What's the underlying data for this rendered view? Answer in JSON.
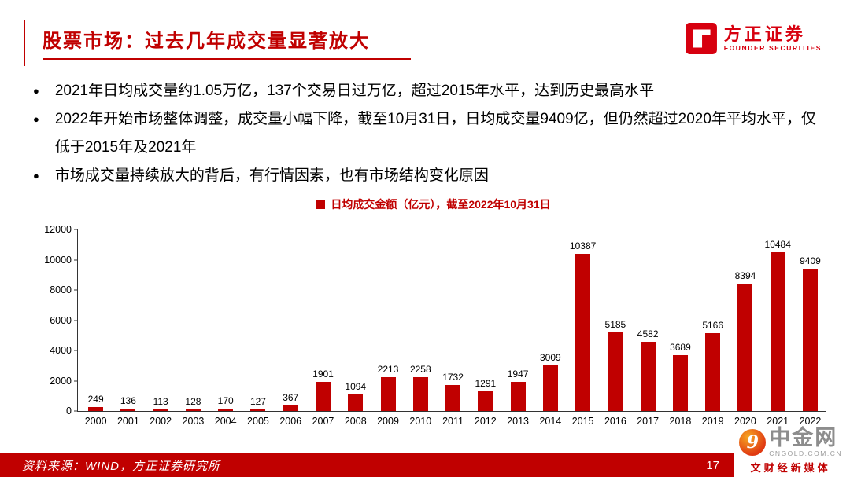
{
  "header": {
    "title": "股票市场：过去几年成交量显著放大",
    "logo": {
      "name": "方正证券",
      "subtitle": "FOUNDER SECURITIES"
    }
  },
  "bullets": [
    "2021年日均成交量约1.05万亿，137个交易日过万亿，超过2015年水平，达到历史最高水平",
    "2022年开始市场整体调整，成交量小幅下降，截至10月31日，日均成交量9409亿，但仍然超过2020年平均水平，仅低于2015年及2021年",
    "市场成交量持续放大的背后，有行情因素，也有市场结构变化原因"
  ],
  "chart_data": {
    "type": "bar",
    "title": "日均成交金额（亿元），截至2022年10月31日",
    "categories": [
      "2000",
      "2001",
      "2002",
      "2003",
      "2004",
      "2005",
      "2006",
      "2007",
      "2008",
      "2009",
      "2010",
      "2011",
      "2012",
      "2013",
      "2014",
      "2015",
      "2016",
      "2017",
      "2018",
      "2019",
      "2020",
      "2021",
      "2022"
    ],
    "values": [
      249,
      136,
      113,
      128,
      170,
      127,
      367,
      1901,
      1094,
      2213,
      2258,
      1732,
      1291,
      1947,
      3009,
      10387,
      5185,
      4582,
      3689,
      5166,
      8394,
      10484,
      9409
    ],
    "xlabel": "",
    "ylabel": "",
    "ylim": [
      0,
      12000
    ],
    "yticks": [
      0,
      2000,
      4000,
      6000,
      8000,
      10000,
      12000
    ],
    "grid": false,
    "legend_position": "top",
    "bar_color": "#c00000"
  },
  "footer": {
    "source": "资料来源：WIND，方正证券研究所",
    "page_number": "17"
  },
  "watermark": {
    "name": "中金网",
    "icon_glyph": "9",
    "domain": "CNGOLD.COM.CN",
    "tagline": "文财经新媒体"
  },
  "colors": {
    "accent": "#c00000",
    "bar": "#c00000",
    "logo-red": "#d7000f",
    "wm-gray": "#8d8d8d"
  }
}
